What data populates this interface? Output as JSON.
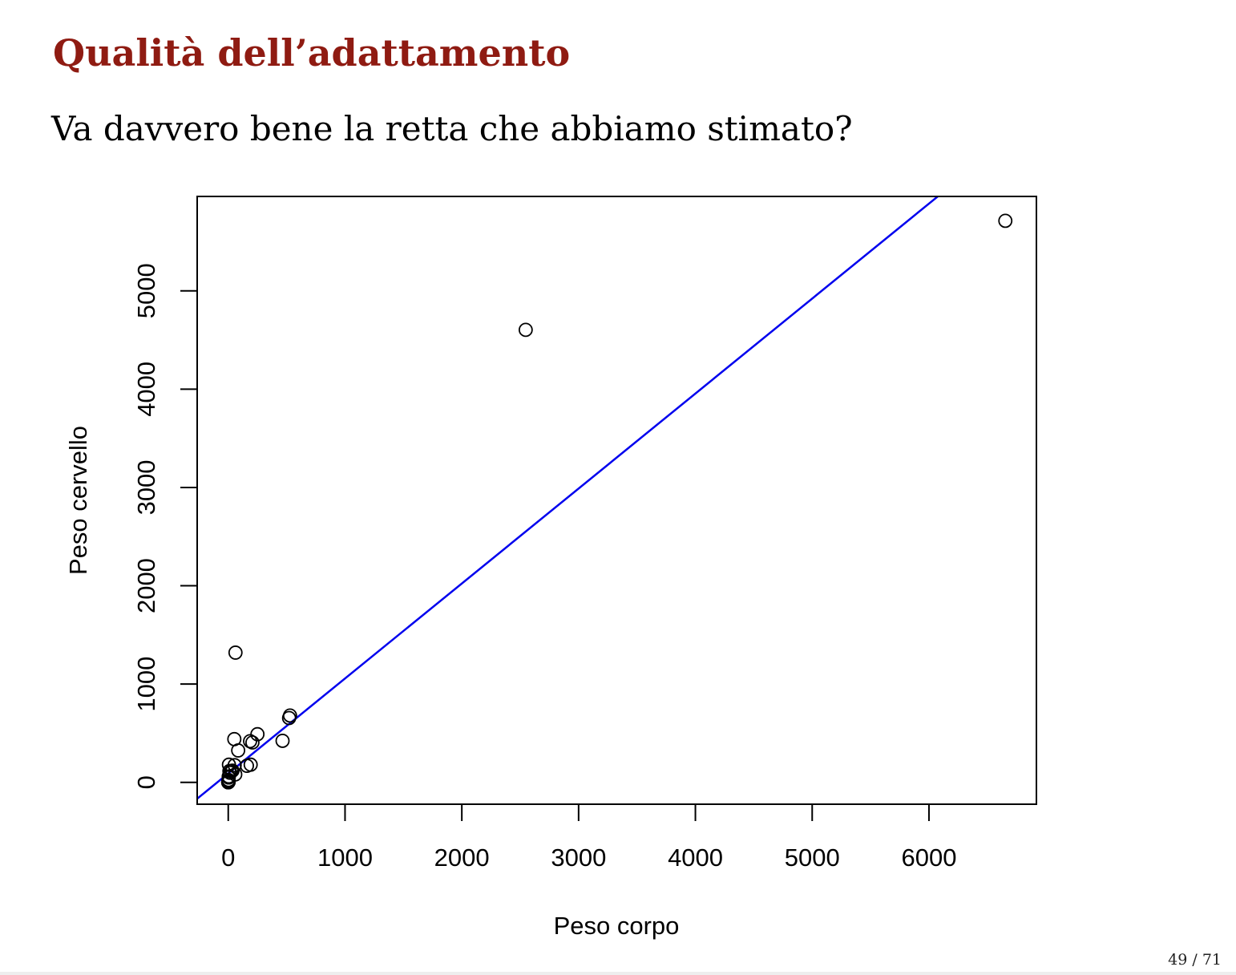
{
  "slide": {
    "title": "Qualità dell’adattamento",
    "subtitle": "Va davvero bene la retta che abbiamo stimato?",
    "page_number": "49 / 71"
  },
  "chart_data": {
    "type": "scatter",
    "title": "",
    "xlabel": "Peso corpo",
    "ylabel": "Peso cervello",
    "xlim": [
      -266,
      6920
    ],
    "ylim": [
      -222,
      5960
    ],
    "x_ticks": [
      0,
      1000,
      2000,
      3000,
      4000,
      5000,
      6000
    ],
    "y_ticks": [
      0,
      1000,
      2000,
      3000,
      4000,
      5000
    ],
    "grid": false,
    "legend": "none",
    "point_color": "#000000",
    "line_color": "#0000ee",
    "points": [
      {
        "x": 6654,
        "y": 5712
      },
      {
        "x": 2547,
        "y": 4603
      },
      {
        "x": 62,
        "y": 1320
      },
      {
        "x": 529,
        "y": 680
      },
      {
        "x": 521,
        "y": 655
      },
      {
        "x": 465,
        "y": 423
      },
      {
        "x": 250,
        "y": 490
      },
      {
        "x": 207,
        "y": 406
      },
      {
        "x": 187,
        "y": 419
      },
      {
        "x": 52,
        "y": 440
      },
      {
        "x": 85,
        "y": 325
      },
      {
        "x": 192,
        "y": 180
      },
      {
        "x": 160,
        "y": 169
      },
      {
        "x": 55,
        "y": 175
      },
      {
        "x": 36,
        "y": 119
      },
      {
        "x": 27,
        "y": 115
      },
      {
        "x": 60,
        "y": 81
      },
      {
        "x": 10,
        "y": 115
      },
      {
        "x": 6,
        "y": 180
      },
      {
        "x": 3.5,
        "y": 3.9
      },
      {
        "x": 4.2,
        "y": 50
      },
      {
        "x": 1.4,
        "y": 12.5
      },
      {
        "x": 0.5,
        "y": 5.5
      },
      {
        "x": 2.5,
        "y": 12.1
      },
      {
        "x": 1,
        "y": 5
      },
      {
        "x": 3,
        "y": 25
      },
      {
        "x": 0.1,
        "y": 1
      },
      {
        "x": 0.01,
        "y": 0.25
      },
      {
        "x": 14,
        "y": 98
      },
      {
        "x": 0.9,
        "y": 2.6
      },
      {
        "x": 0.3,
        "y": 1.9
      },
      {
        "x": 4,
        "y": 60
      }
    ],
    "fit_line": {
      "intercept": 91,
      "slope": 0.966
    }
  }
}
